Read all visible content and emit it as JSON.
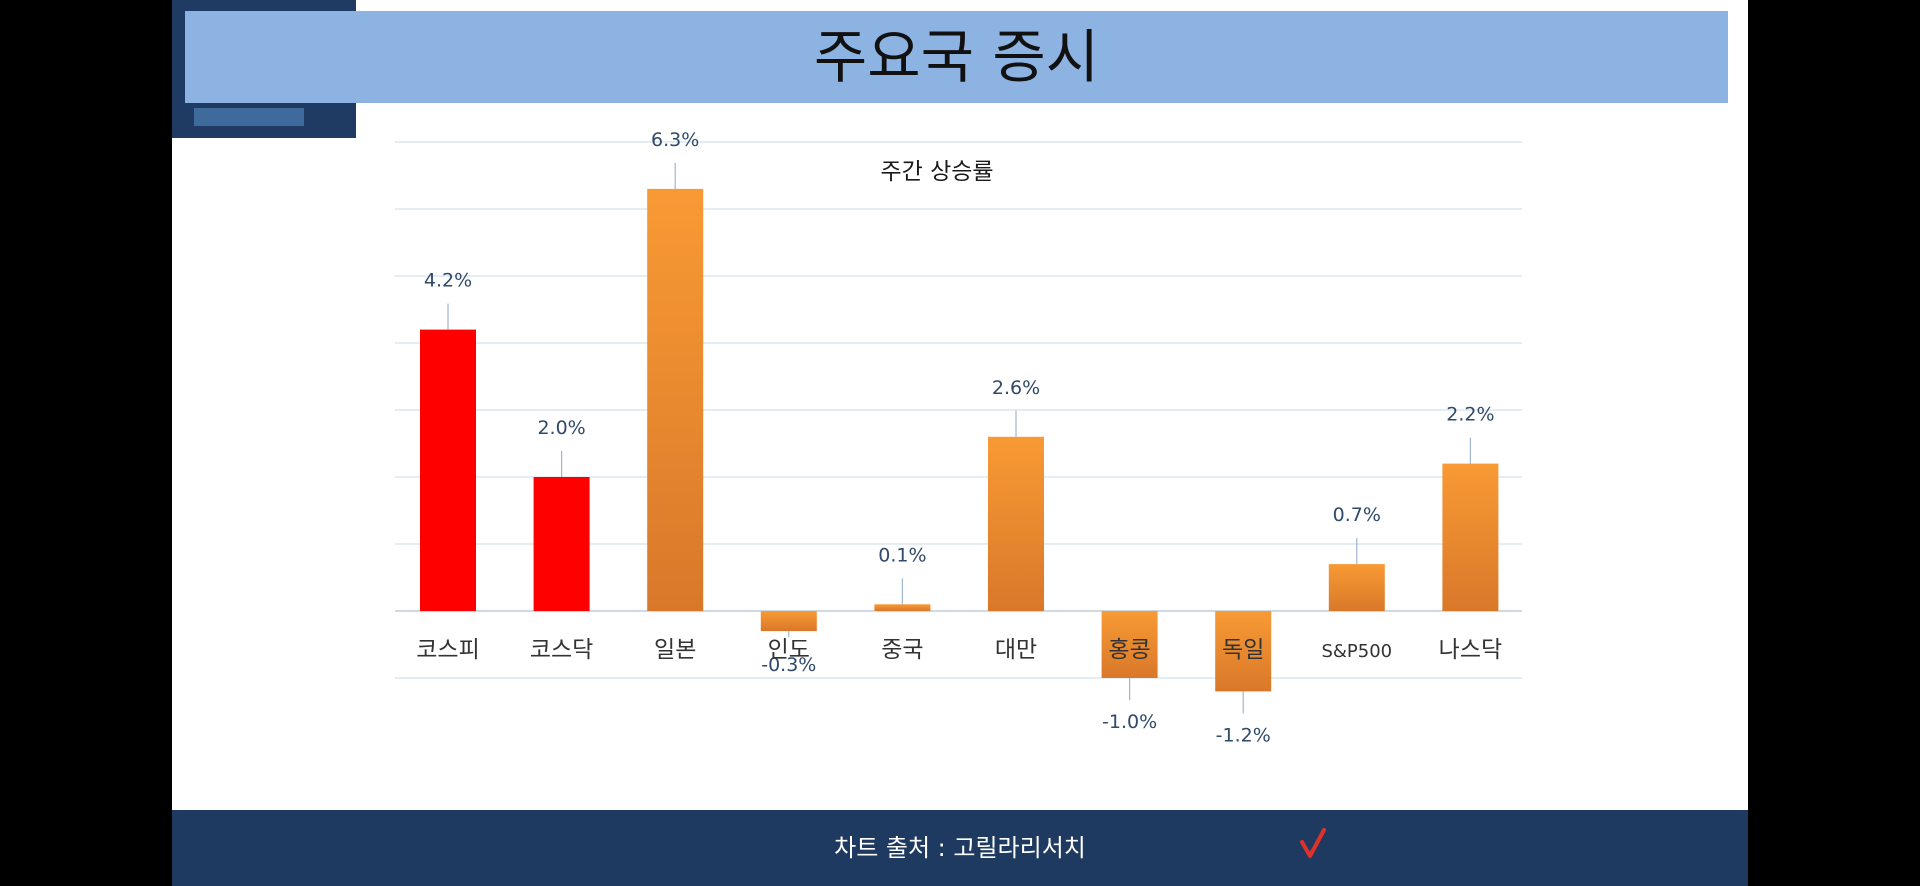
{
  "slide": {
    "title": "주요국 증시",
    "footer": "차트 출처 : 고릴라리서치",
    "footer_icon": "checkmark-icon"
  },
  "colors": {
    "title_bar": "#8db3e2",
    "dark_navy": "#1f3a60",
    "bar_red": "#ff0000",
    "bar_orange": "#f0922e",
    "check": "#e0302a"
  },
  "chart_data": {
    "type": "bar",
    "title": "주간 상승률",
    "categories": [
      "코스피",
      "코스닥",
      "일본",
      "인도",
      "중국",
      "대만",
      "홍콩",
      "독일",
      "S&P500",
      "나스닥"
    ],
    "values": [
      4.2,
      2.0,
      6.3,
      -0.3,
      0.1,
      2.6,
      -1.0,
      -1.2,
      0.7,
      2.2
    ],
    "value_labels": [
      "4.2%",
      "2.0%",
      "6.3%",
      "-0.3%",
      "0.1%",
      "2.6%",
      "-1.0%",
      "-1.2%",
      "0.7%",
      "2.2%"
    ],
    "bar_colors": [
      "#ff0000",
      "#ff0000",
      "#f0922e",
      "#f0922e",
      "#f0922e",
      "#f0922e",
      "#f0922e",
      "#f0922e",
      "#f0922e",
      "#f0922e"
    ],
    "ylim": [
      -1,
      7
    ],
    "grid": true,
    "xlabel": "",
    "ylabel": ""
  }
}
